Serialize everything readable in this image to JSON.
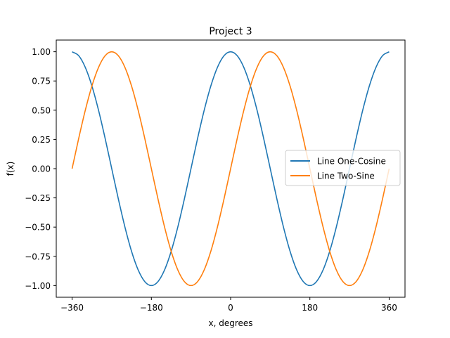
{
  "chart_data": {
    "type": "line",
    "title": "Project 3",
    "xlabel": "x, degrees",
    "ylabel": "f(x)",
    "xlim": [
      -396,
      396
    ],
    "ylim": [
      -1.1,
      1.1
    ],
    "x_ticks": [
      -360,
      -180,
      0,
      180,
      360
    ],
    "x_tick_labels": [
      "−360",
      "−180",
      "0",
      "180",
      "360"
    ],
    "y_ticks": [
      1.0,
      0.75,
      0.5,
      0.25,
      0.0,
      -0.25,
      -0.5,
      -0.75,
      -1.0
    ],
    "y_tick_labels": [
      "1.00",
      "0.75",
      "0.50",
      "0.25",
      "0.00",
      "−0.25",
      "−0.50",
      "−0.75",
      "−1.00"
    ],
    "grid": false,
    "legend_position": "center-right",
    "x": [
      -360,
      -345,
      -330,
      -315,
      -300,
      -285,
      -270,
      -255,
      -240,
      -225,
      -210,
      -195,
      -180,
      -165,
      -150,
      -135,
      -120,
      -105,
      -90,
      -75,
      -60,
      -45,
      -30,
      -15,
      0,
      15,
      30,
      45,
      60,
      75,
      90,
      105,
      120,
      135,
      150,
      165,
      180,
      195,
      210,
      225,
      240,
      255,
      270,
      285,
      300,
      315,
      330,
      345,
      360
    ],
    "series": [
      {
        "name": "Line One-Cosine",
        "color": "#1f77b4",
        "values": [
          1.0,
          0.966,
          0.866,
          0.707,
          0.5,
          0.259,
          0.0,
          -0.259,
          -0.5,
          -0.707,
          -0.866,
          -0.966,
          -1.0,
          -0.966,
          -0.866,
          -0.707,
          -0.5,
          -0.259,
          0.0,
          0.259,
          0.5,
          0.707,
          0.866,
          0.966,
          1.0,
          0.966,
          0.866,
          0.707,
          0.5,
          0.259,
          0.0,
          -0.259,
          -0.5,
          -0.707,
          -0.866,
          -0.966,
          -1.0,
          -0.966,
          -0.866,
          -0.707,
          -0.5,
          -0.259,
          0.0,
          0.259,
          0.5,
          0.707,
          0.866,
          0.966,
          1.0
        ]
      },
      {
        "name": "Line Two-Sine",
        "color": "#ff7f0e",
        "values": [
          0.0,
          0.259,
          0.5,
          0.707,
          0.866,
          0.966,
          1.0,
          0.966,
          0.866,
          0.707,
          0.5,
          0.259,
          0.0,
          -0.259,
          -0.5,
          -0.707,
          -0.866,
          -0.966,
          -1.0,
          -0.966,
          -0.866,
          -0.707,
          -0.5,
          -0.259,
          0.0,
          0.259,
          0.5,
          0.707,
          0.866,
          0.966,
          1.0,
          0.966,
          0.866,
          0.707,
          0.5,
          0.259,
          0.0,
          -0.259,
          -0.5,
          -0.707,
          -0.866,
          -0.966,
          -1.0,
          -0.966,
          -0.866,
          -0.707,
          -0.5,
          -0.259,
          0.0
        ]
      }
    ]
  }
}
